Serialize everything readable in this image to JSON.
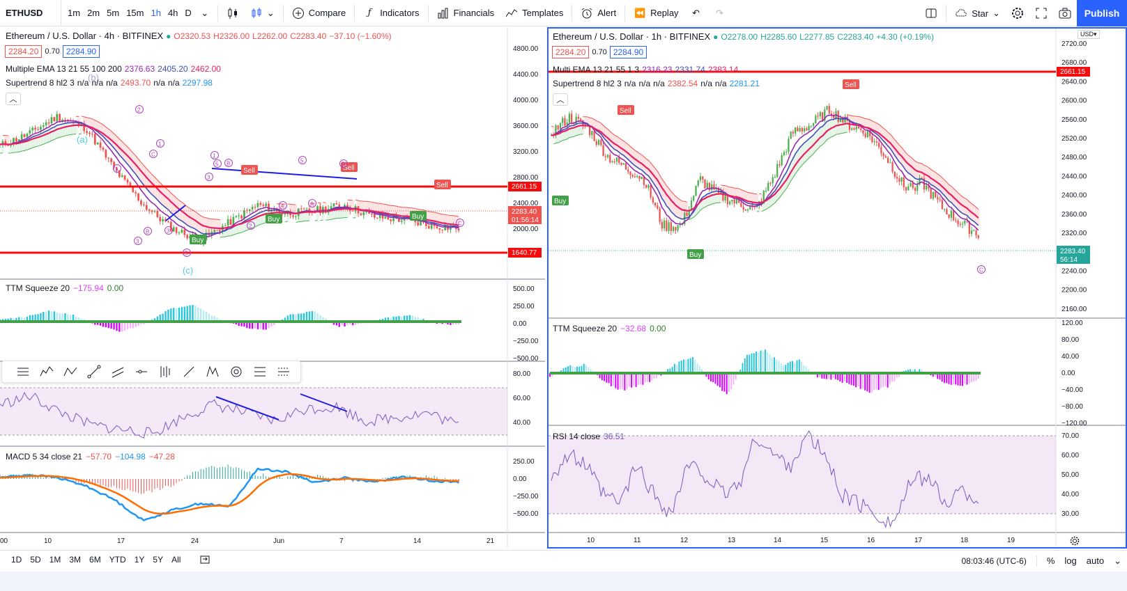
{
  "toolbar": {
    "symbol": "ETHUSD",
    "intervals": [
      "1m",
      "2m",
      "5m",
      "15m",
      "1h",
      "4h",
      "D"
    ],
    "active_interval": "1h",
    "compare": "Compare",
    "indicators": "Indicators",
    "financials": "Financials",
    "templates": "Templates",
    "alert": "Alert",
    "replay": "Replay",
    "star": "Star",
    "publish": "Publish"
  },
  "colors": {
    "accent": "#2962ff",
    "red": "#ef5350",
    "hline": "#f50c0c",
    "green": "#26a69a",
    "up": "#4caf50",
    "down": "#ef5350",
    "ema_fast": "#9c27b0",
    "ema_mid": "#3f51b5",
    "ema_slow": "#e91e63",
    "cyan": "#4dd0e1",
    "magenta": "#e040fb",
    "rsi": "#7e57c2",
    "macd": "#2196f3",
    "signal": "#ff6d00"
  },
  "left": {
    "title": "Ethereum / U.S. Dollar · 4h · BITFINEX",
    "ohlc": {
      "o": "O2320.53",
      "h": "H2326.00",
      "l": "L2262.00",
      "c": "C2283.40",
      "chg": "−37.10 (−1.60%)"
    },
    "bid": "2284.20",
    "spread": "0.70",
    "ask": "2284.90",
    "ema_label": "Multiple EMA 13 21 55 100 200",
    "ema_values": [
      "2376.63",
      "2405.20",
      "2462.00"
    ],
    "st_label": "Supertrend 8 hl2 3",
    "st_values": [
      "n/a",
      "n/a",
      "n/a",
      "2493.70",
      "n/a",
      "n/a",
      "2297.98"
    ],
    "yticks": [
      "4800.00",
      "4400.00",
      "4000.00",
      "3600.00",
      "3200.00",
      "2800.00",
      "2400.00",
      "2000.00"
    ],
    "hline_upper": "2661.15",
    "hline_lower": "1640.77",
    "last_price": "2283.40",
    "countdown": "01:56:14",
    "ttm_label": "TTM Squeeze 20",
    "ttm_values": [
      "−175.94",
      "0.00"
    ],
    "ttm_ticks": [
      "500.00",
      "250.00",
      "0.00",
      "−250.00",
      "−500.00"
    ],
    "rsi_ticks": [
      "80.00",
      "60.00",
      "40.00"
    ],
    "macd_label": "MACD 5 34 close 21",
    "macd_values": [
      "−57.70",
      "−104.98",
      "−47.28"
    ],
    "macd_ticks": [
      "250.00",
      "0.00",
      "−250.00",
      "−500.00"
    ],
    "xticks": [
      "00",
      "10",
      "17",
      "24",
      "Jun",
      "7",
      "14",
      "21"
    ],
    "signals": [
      "Buy",
      "Buy",
      "Buy",
      "Sell",
      "Sell",
      "Sell"
    ],
    "wave_labels": [
      "(a)",
      "(b)",
      "(c)",
      "1",
      "2",
      "3",
      "4",
      "5",
      "A",
      "B",
      "C"
    ]
  },
  "right": {
    "title": "Ethereum / U.S. Dollar · 1h · BITFINEX",
    "ohlc": {
      "o": "O2278.00",
      "h": "H2285.60",
      "l": "L2277.85",
      "c": "C2283.40",
      "chg": "+4.30 (+0.19%)"
    },
    "bid": "2284.20",
    "spread": "0.70",
    "ask": "2284.90",
    "ema_label": "Multi EMA 13 21 55 1 3",
    "ema_values": [
      "2316.23",
      "2331.74",
      "2383.14"
    ],
    "st_label": "Supertrend 8 hl2 3",
    "st_values": [
      "n/a",
      "n/a",
      "n/a",
      "2382.54",
      "n/a",
      "n/a",
      "2281.21"
    ],
    "currency": "USD",
    "yticks": [
      "2720.00",
      "2680.00",
      "2640.00",
      "2600.00",
      "2560.00",
      "2520.00",
      "2480.00",
      "2440.00",
      "2400.00",
      "2360.00",
      "2320.00",
      "2280.00",
      "2240.00",
      "2200.00",
      "2160.00"
    ],
    "hline": "2661.15",
    "last_price": "2283.40",
    "countdown": "56:14",
    "ttm_label": "TTM Squeeze 20",
    "ttm_values": [
      "−32.68",
      "0.00"
    ],
    "ttm_ticks": [
      "120.00",
      "80.00",
      "40.00",
      "0.00",
      "−40.00",
      "−80.00",
      "−120.00"
    ],
    "rsi_label": "RSI 14 close",
    "rsi_value": "36.51",
    "rsi_ticks": [
      "70.00",
      "60.00",
      "50.00",
      "40.00",
      "30.00"
    ],
    "xticks": [
      "10",
      "11",
      "12",
      "13",
      "14",
      "15",
      "16",
      "17",
      "18",
      "19"
    ],
    "signals": [
      "Buy",
      "Buy",
      "Sell",
      "Sell"
    ],
    "wave_label": "C"
  },
  "bottom": {
    "ranges": [
      "1D",
      "5D",
      "1M",
      "3M",
      "6M",
      "YTD",
      "1Y",
      "5Y",
      "All"
    ],
    "time": "08:03:46 (UTC-6)",
    "pct": "%",
    "log": "log",
    "auto": "auto"
  }
}
